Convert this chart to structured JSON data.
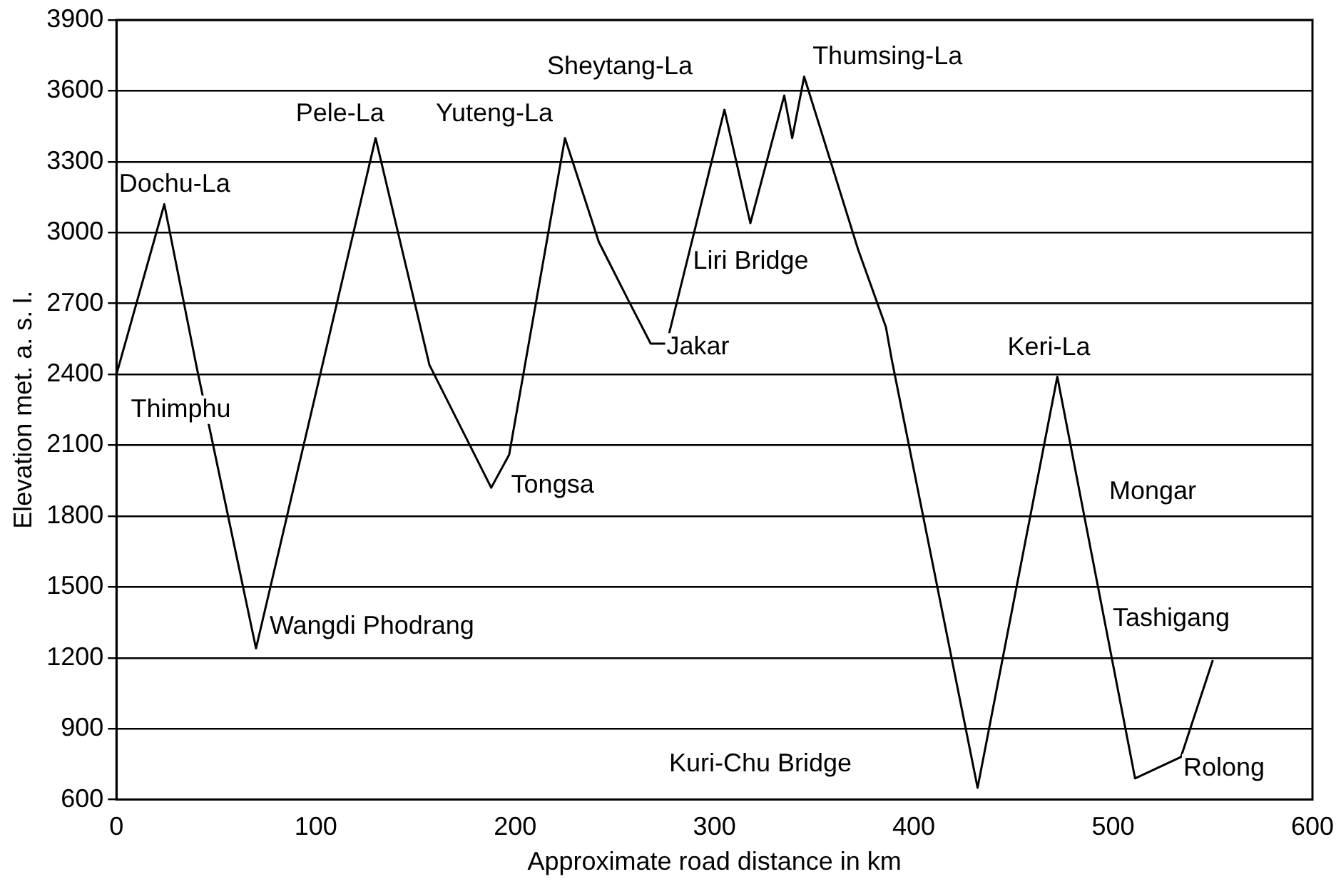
{
  "chart_data": {
    "type": "line",
    "xlabel": "Approximate road distance in km",
    "ylabel": "Elevation met. a. s. l.",
    "x": [
      0,
      24,
      40,
      70,
      130,
      157,
      188,
      197,
      225,
      242,
      257,
      268,
      276,
      305,
      318,
      335,
      339,
      345,
      372,
      386,
      389,
      432,
      472,
      511,
      534,
      550
    ],
    "series": [
      {
        "color": "#000000",
        "values": [
          2400,
          3120,
          2440,
          1240,
          3400,
          2440,
          1920,
          2060,
          3400,
          2960,
          2710,
          2530,
          2530,
          3520,
          3040,
          3580,
          3400,
          3660,
          2930,
          2600,
          2460,
          650,
          2390,
          690,
          780,
          1190
        ]
      }
    ],
    "xlim": [
      0,
      600
    ],
    "xticks": [
      0,
      100,
      200,
      300,
      400,
      500,
      600
    ],
    "ylim": [
      600,
      3900
    ],
    "yticks": [
      600,
      900,
      1200,
      1500,
      1800,
      2100,
      2400,
      2700,
      3000,
      3300,
      3600,
      3900
    ],
    "grid": "y",
    "line_style": "solid",
    "marker": "none",
    "legend": false,
    "annotations": [
      "Dochu-La",
      "Thimphu",
      "Pele-La",
      "Yuteng-La",
      "Sheytang-La",
      "Thumsing-La",
      "Liri Bridge",
      "Jakar",
      "Tongsa",
      "Wangdi Phodrang",
      "Keri-La",
      "Mongar",
      "Tashigang",
      "Kuri-Chu Bridge",
      "Rolong"
    ]
  }
}
